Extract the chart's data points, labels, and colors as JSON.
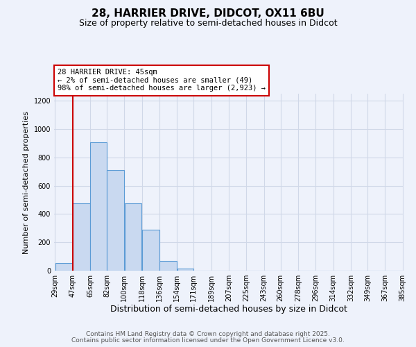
{
  "title": "28, HARRIER DRIVE, DIDCOT, OX11 6BU",
  "subtitle": "Size of property relative to semi-detached houses in Didcot",
  "xlabel": "Distribution of semi-detached houses by size in Didcot",
  "ylabel": "Number of semi-detached properties",
  "bar_left_edges": [
    29,
    47,
    65,
    82,
    100,
    118,
    136,
    154,
    171,
    189,
    207,
    225,
    243,
    260,
    278,
    296,
    314,
    332,
    349,
    367
  ],
  "bar_widths": [
    18,
    18,
    17,
    18,
    18,
    18,
    18,
    17,
    18,
    18,
    18,
    18,
    17,
    18,
    18,
    18,
    18,
    17,
    18,
    18
  ],
  "bar_heights": [
    55,
    475,
    905,
    710,
    475,
    290,
    70,
    15,
    0,
    0,
    0,
    0,
    0,
    0,
    0,
    0,
    0,
    0,
    0,
    0
  ],
  "xtick_labels": [
    "29sqm",
    "47sqm",
    "65sqm",
    "82sqm",
    "100sqm",
    "118sqm",
    "136sqm",
    "154sqm",
    "171sqm",
    "189sqm",
    "207sqm",
    "225sqm",
    "243sqm",
    "260sqm",
    "278sqm",
    "296sqm",
    "314sqm",
    "332sqm",
    "349sqm",
    "367sqm",
    "385sqm"
  ],
  "ylim": [
    0,
    1250
  ],
  "yticks": [
    0,
    200,
    400,
    600,
    800,
    1000,
    1200
  ],
  "bar_color": "#c9d9f0",
  "bar_edge_color": "#5b9bd5",
  "grid_color": "#d0d8e8",
  "bg_color": "#eef2fb",
  "property_line_x": 47,
  "annotation_line1": "28 HARRIER DRIVE: 45sqm",
  "annotation_line2": "← 2% of semi-detached houses are smaller (49)",
  "annotation_line3": "98% of semi-detached houses are larger (2,923) →",
  "annotation_box_color": "#ffffff",
  "annotation_box_edge": "#cc0000",
  "property_vline_color": "#cc0000",
  "footer1": "Contains HM Land Registry data © Crown copyright and database right 2025.",
  "footer2": "Contains public sector information licensed under the Open Government Licence v3.0.",
  "title_fontsize": 11,
  "subtitle_fontsize": 9,
  "xlabel_fontsize": 9,
  "ylabel_fontsize": 8,
  "tick_fontsize": 7,
  "annotation_fontsize": 7.5,
  "footer_fontsize": 6.5
}
